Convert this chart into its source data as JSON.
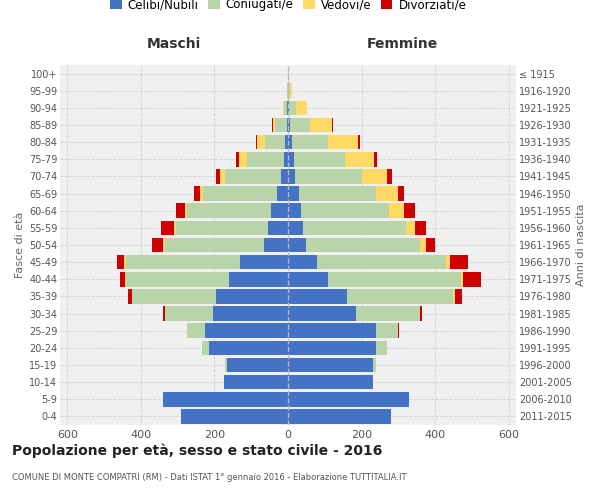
{
  "age_groups": [
    "0-4",
    "5-9",
    "10-14",
    "15-19",
    "20-24",
    "25-29",
    "30-34",
    "35-39",
    "40-44",
    "45-49",
    "50-54",
    "55-59",
    "60-64",
    "65-69",
    "70-74",
    "75-79",
    "80-84",
    "85-89",
    "90-94",
    "95-99",
    "100+"
  ],
  "birth_years": [
    "2011-2015",
    "2006-2010",
    "2001-2005",
    "1996-2000",
    "1991-1995",
    "1986-1990",
    "1981-1985",
    "1976-1980",
    "1971-1975",
    "1966-1970",
    "1961-1965",
    "1956-1960",
    "1951-1955",
    "1946-1950",
    "1941-1945",
    "1936-1940",
    "1931-1935",
    "1926-1930",
    "1921-1925",
    "1916-1920",
    "≤ 1915"
  ],
  "males": {
    "celibe": [
      290,
      340,
      175,
      165,
      215,
      225,
      205,
      195,
      160,
      130,
      65,
      55,
      45,
      30,
      20,
      12,
      8,
      4,
      2,
      0,
      0
    ],
    "coniugato": [
      0,
      0,
      0,
      5,
      20,
      50,
      130,
      230,
      280,
      310,
      270,
      250,
      230,
      200,
      150,
      100,
      55,
      30,
      10,
      2,
      0
    ],
    "vedovo": [
      0,
      0,
      0,
      0,
      0,
      0,
      0,
      0,
      3,
      5,
      5,
      5,
      5,
      10,
      15,
      20,
      20,
      8,
      2,
      0,
      0
    ],
    "divorziato": [
      0,
      0,
      0,
      0,
      0,
      0,
      5,
      10,
      15,
      20,
      30,
      35,
      25,
      15,
      12,
      10,
      5,
      2,
      0,
      0,
      0
    ]
  },
  "females": {
    "nubile": [
      280,
      330,
      230,
      230,
      240,
      240,
      185,
      160,
      110,
      80,
      50,
      40,
      35,
      30,
      20,
      15,
      10,
      5,
      2,
      0,
      0
    ],
    "coniugata": [
      0,
      0,
      0,
      10,
      30,
      60,
      175,
      290,
      360,
      350,
      310,
      280,
      240,
      210,
      180,
      140,
      100,
      55,
      20,
      5,
      2
    ],
    "vedova": [
      0,
      0,
      0,
      0,
      0,
      0,
      0,
      3,
      5,
      10,
      15,
      25,
      40,
      60,
      70,
      80,
      80,
      60,
      30,
      5,
      2
    ],
    "divorziata": [
      0,
      0,
      0,
      0,
      0,
      2,
      5,
      20,
      50,
      50,
      25,
      30,
      30,
      15,
      12,
      8,
      5,
      2,
      0,
      0,
      0
    ]
  },
  "colors": {
    "celibe": "#4472C4",
    "coniugato": "#B8D4A8",
    "vedovo": "#FFD966",
    "divorziato": "#CC0000"
  },
  "legend_labels": [
    "Celibi/Nubili",
    "Coniugati/e",
    "Vedovi/e",
    "Divorziati/e"
  ],
  "title_main": "Popolazione per età, sesso e stato civile - 2016",
  "title_sub": "COMUNE DI MONTE COMPATRI (RM) - Dati ISTAT 1° gennaio 2016 - Elaborazione TUTTITALIA.IT",
  "xlabel_left": "Maschi",
  "xlabel_right": "Femmine",
  "ylabel_left": "Fasce di età",
  "ylabel_right": "Anni di nascita",
  "xlim": 620,
  "bg_color": "#FFFFFF",
  "plot_bg": "#F0F0F0",
  "grid_color": "#CCCCCC"
}
